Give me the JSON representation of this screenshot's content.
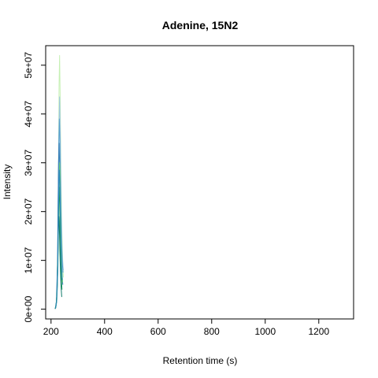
{
  "chart_data": {
    "type": "line",
    "title": "Adenine, 15N2",
    "xlabel": "Retention time (s)",
    "ylabel": "Intensity",
    "xlim": [
      180,
      1330
    ],
    "ylim": [
      -2000000,
      54000000
    ],
    "x_ticks": [
      200,
      400,
      600,
      800,
      1000,
      1200
    ],
    "x_tick_labels": [
      "200",
      "400",
      "600",
      "800",
      "1000",
      "1200"
    ],
    "y_ticks": [
      0,
      10000000,
      20000000,
      30000000,
      40000000,
      50000000
    ],
    "y_tick_labels": [
      "0e+00",
      "1e+07",
      "2e+07",
      "3e+07",
      "4e+07",
      "5e+07"
    ],
    "grid": false,
    "legend": false,
    "series": [
      {
        "color": "#c6f0b4",
        "x": [
          218,
          222,
          226,
          228,
          230,
          232,
          234,
          236,
          238,
          240,
          243,
          246
        ],
        "y": [
          500000,
          3000000,
          14000000,
          30000000,
          46000000,
          52000000,
          44000000,
          33000000,
          24000000,
          17000000,
          11000000,
          6500000
        ]
      },
      {
        "color": "#9fc7e2",
        "x": [
          218,
          222,
          226,
          228,
          230,
          232,
          234,
          236,
          238,
          240,
          243,
          246
        ],
        "y": [
          500000,
          2500000,
          12000000,
          26000000,
          38000000,
          43500000,
          38000000,
          29000000,
          22000000,
          15000000,
          10000000,
          8000000
        ]
      },
      {
        "color": "#5aa0cf",
        "x": [
          217,
          221,
          225,
          227,
          229,
          231,
          233,
          235,
          237,
          239,
          242,
          245
        ],
        "y": [
          300000,
          2000000,
          11000000,
          24000000,
          34000000,
          39000000,
          35000000,
          27000000,
          20000000,
          14000000,
          9500000,
          7500000
        ]
      },
      {
        "color": "#3a7fb8",
        "x": [
          216,
          220,
          224,
          226,
          228,
          230,
          232,
          234,
          236,
          238,
          241,
          244
        ],
        "y": [
          200000,
          1500000,
          9000000,
          20000000,
          30000000,
          34000000,
          30000000,
          23000000,
          16000000,
          11000000,
          7000000,
          5000000
        ]
      },
      {
        "color": "#6acb7a",
        "x": [
          218,
          222,
          226,
          228,
          230,
          232,
          234,
          236,
          238,
          240,
          243
        ],
        "y": [
          300000,
          2000000,
          9000000,
          18000000,
          26000000,
          30000000,
          27000000,
          20000000,
          14000000,
          9000000,
          5500000
        ]
      },
      {
        "color": "#1f9a5a",
        "x": [
          216,
          220,
          224,
          226,
          228,
          230,
          232,
          234,
          236,
          238,
          241
        ],
        "y": [
          100000,
          1200000,
          6000000,
          13000000,
          20000000,
          25000000,
          22000000,
          16000000,
          11000000,
          7000000,
          4000000
        ]
      },
      {
        "color": "#0f7a6a",
        "x": [
          215,
          219,
          223,
          225,
          227,
          229,
          231,
          233,
          235,
          237,
          240
        ],
        "y": [
          50000,
          800000,
          4000000,
          9000000,
          15000000,
          19000000,
          17000000,
          12000000,
          8000000,
          5000000,
          2500000
        ]
      },
      {
        "color": "#2e8bc0",
        "x": [
          217,
          221,
          225,
          227,
          229,
          231,
          233,
          235,
          237,
          239,
          242
        ],
        "y": [
          150000,
          1500000,
          8000000,
          17000000,
          25000000,
          28500000,
          26000000,
          20000000,
          14000000,
          9000000,
          6000000
        ]
      }
    ]
  }
}
